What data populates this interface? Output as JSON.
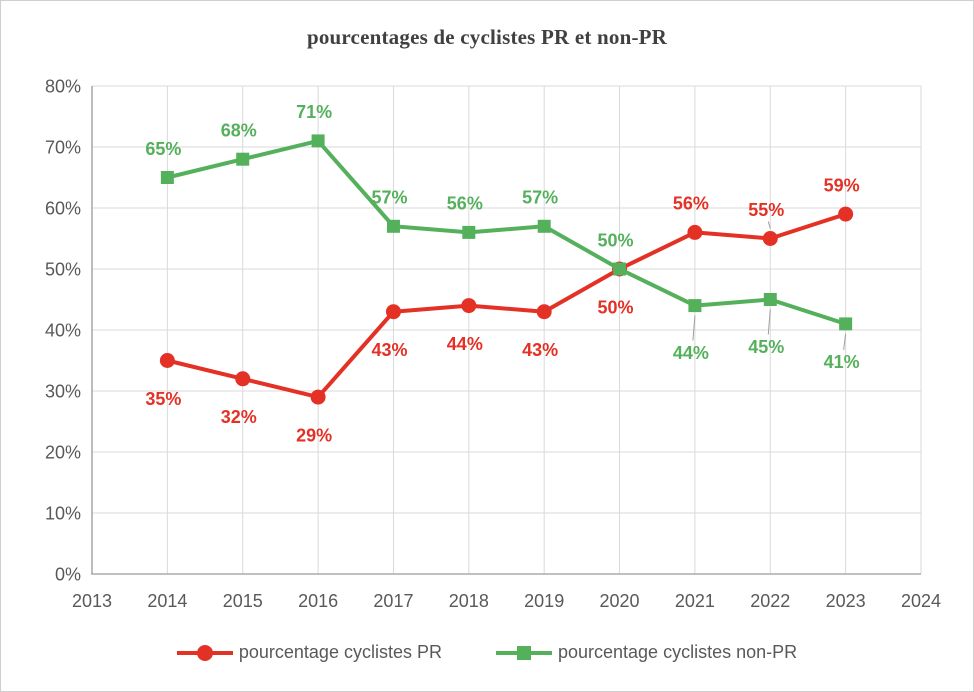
{
  "chart_data": {
    "type": "line",
    "title": "pourcentages de cyclistes PR et non-PR",
    "xlabel": "",
    "ylabel": "",
    "xlim": [
      2013,
      2024
    ],
    "ylim": [
      0,
      80
    ],
    "grid": true,
    "legend_position": "bottom",
    "x": [
      2014,
      2015,
      2016,
      2017,
      2018,
      2019,
      2020,
      2021,
      2022,
      2023
    ],
    "x_ticks": [
      {
        "value": 2013,
        "label": "2013"
      },
      {
        "value": 2014,
        "label": "2014"
      },
      {
        "value": 2015,
        "label": "2015"
      },
      {
        "value": 2016,
        "label": "2016"
      },
      {
        "value": 2017,
        "label": "2017"
      },
      {
        "value": 2018,
        "label": "2018"
      },
      {
        "value": 2019,
        "label": "2019"
      },
      {
        "value": 2020,
        "label": "2020"
      },
      {
        "value": 2021,
        "label": "2021"
      },
      {
        "value": 2022,
        "label": "2022"
      },
      {
        "value": 2023,
        "label": "2023"
      },
      {
        "value": 2024,
        "label": "2024"
      }
    ],
    "y_ticks": [
      {
        "value": 0,
        "label": "0%"
      },
      {
        "value": 10,
        "label": "10%"
      },
      {
        "value": 20,
        "label": "20%"
      },
      {
        "value": 30,
        "label": "30%"
      },
      {
        "value": 40,
        "label": "40%"
      },
      {
        "value": 50,
        "label": "50%"
      },
      {
        "value": 60,
        "label": "60%"
      },
      {
        "value": 70,
        "label": "70%"
      },
      {
        "value": 80,
        "label": "80%"
      }
    ],
    "series": [
      {
        "name": "pourcentage cyclistes PR",
        "color": "#E43125",
        "marker": "circle",
        "values": [
          35,
          32,
          29,
          43,
          44,
          43,
          50,
          56,
          55,
          59
        ],
        "labels": [
          "35%",
          "32%",
          "29%",
          "43%",
          "44%",
          "43%",
          "50%",
          "56%",
          "55%",
          "59%"
        ],
        "label_pos": [
          "below",
          "below",
          "below",
          "below",
          "below",
          "below",
          "below",
          "above",
          "above",
          "above"
        ],
        "label_leader": [
          false,
          false,
          false,
          false,
          false,
          false,
          false,
          false,
          true,
          false
        ]
      },
      {
        "name": "pourcentage cyclistes non-PR",
        "color": "#55B05C",
        "marker": "square",
        "values": [
          65,
          68,
          71,
          57,
          56,
          57,
          50,
          44,
          45,
          41
        ],
        "labels": [
          "65%",
          "68%",
          "71%",
          "57%",
          "56%",
          "57%",
          "50%",
          "44%",
          "45%",
          "41%"
        ],
        "label_pos": [
          "above",
          "above",
          "above",
          "above",
          "above",
          "above",
          "above",
          "below_far",
          "below_far",
          "below"
        ],
        "label_leader": [
          false,
          false,
          false,
          false,
          false,
          false,
          false,
          true,
          true,
          true
        ]
      }
    ],
    "colors": {
      "grid": "#D9D9D9",
      "axis": "#ABABAB",
      "tick_text": "#595959",
      "title_text": "#404040",
      "leader": "#9E9E9E"
    }
  }
}
